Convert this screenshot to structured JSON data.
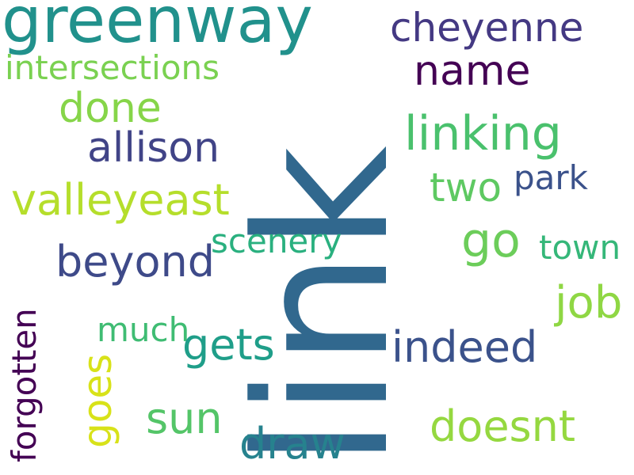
{
  "words": {
    "link": {
      "text": "link",
      "color": "#31688e"
    },
    "greenway": {
      "text": "greenway",
      "color": "#21918c"
    },
    "cheyenne": {
      "text": "cheyenne",
      "color": "#443983"
    },
    "intersections": {
      "text": "intersections",
      "color": "#7ad151"
    },
    "name": {
      "text": "name",
      "color": "#440154"
    },
    "done": {
      "text": "done",
      "color": "#86d549"
    },
    "linking": {
      "text": "linking",
      "color": "#4ac16d"
    },
    "allison": {
      "text": "allison",
      "color": "#414487"
    },
    "two": {
      "text": "two",
      "color": "#5ec962"
    },
    "park": {
      "text": "park",
      "color": "#3b528b"
    },
    "valleyeast": {
      "text": "valleyeast",
      "color": "#b5de2b"
    },
    "scenery": {
      "text": "scenery",
      "color": "#2ab07f"
    },
    "go": {
      "text": "go",
      "color": "#6ccd5a"
    },
    "town": {
      "text": "town",
      "color": "#35b779"
    },
    "beyond": {
      "text": "beyond",
      "color": "#3e4a89"
    },
    "job": {
      "text": "job",
      "color": "#8fd744"
    },
    "forgotten": {
      "text": "forgotten",
      "color": "#440154"
    },
    "much": {
      "text": "much",
      "color": "#3fbc73"
    },
    "gets": {
      "text": "gets",
      "color": "#1f9e89"
    },
    "indeed": {
      "text": "indeed",
      "color": "#3b528b"
    },
    "goes": {
      "text": "goes",
      "color": "#d8e219"
    },
    "sun": {
      "text": "sun",
      "color": "#54c568"
    },
    "draw": {
      "text": "draw",
      "color": "#26828e"
    },
    "doesnt": {
      "text": "doesnt",
      "color": "#95d840"
    }
  }
}
